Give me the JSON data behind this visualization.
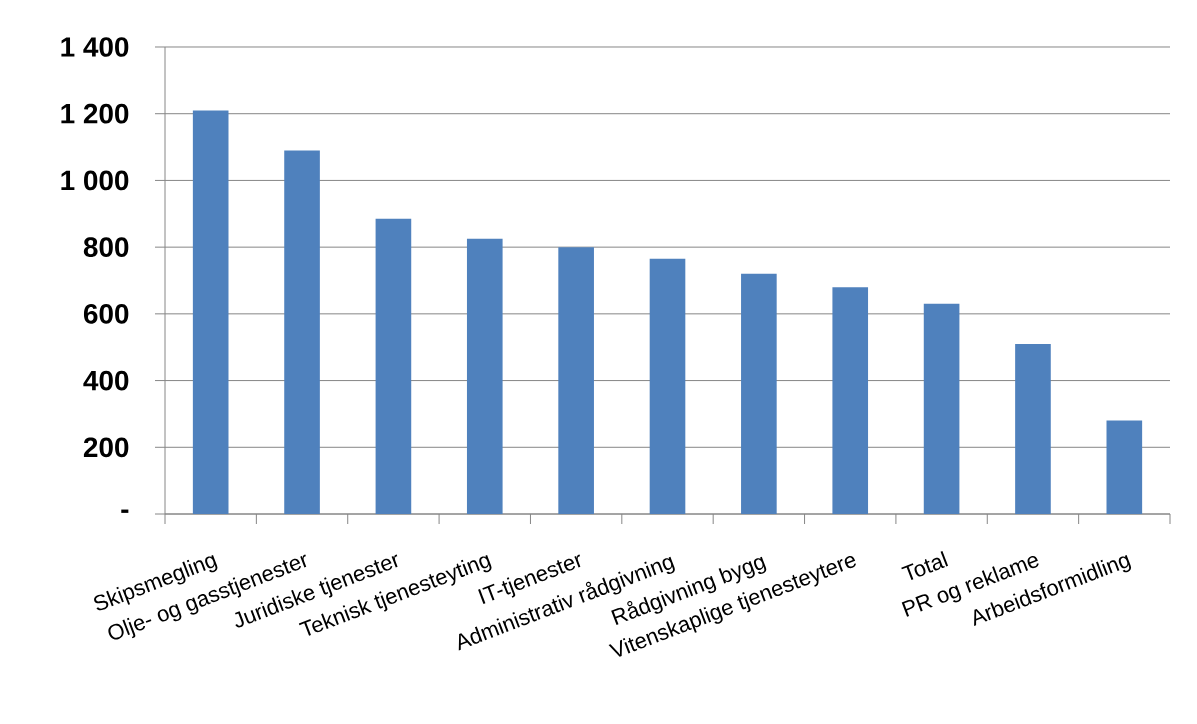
{
  "chart_data": {
    "type": "bar",
    "categories": [
      "Skipsmegling",
      "Olje- og gasstjenester",
      "Juridiske tjenester",
      "Teknisk tjenesteyting",
      "IT-tjenester",
      "Administrativ rådgivning",
      "Rådgivning bygg",
      "Vitenskaplige tjenesteytere",
      "Total",
      "PR og reklame",
      "Arbeidsformidling"
    ],
    "values": [
      1210,
      1090,
      885,
      825,
      800,
      765,
      720,
      680,
      630,
      510,
      280
    ],
    "color": "#4f81bd",
    "ylim": [
      0,
      1400
    ],
    "yticks": [
      {
        "value": 0,
        "label": "-"
      },
      200,
      400,
      600,
      800,
      {
        "value": 1000,
        "label": "1 000"
      },
      {
        "value": 1200,
        "label": "1 200"
      },
      {
        "value": 1400,
        "label": "1 400"
      }
    ],
    "grid": "y"
  }
}
